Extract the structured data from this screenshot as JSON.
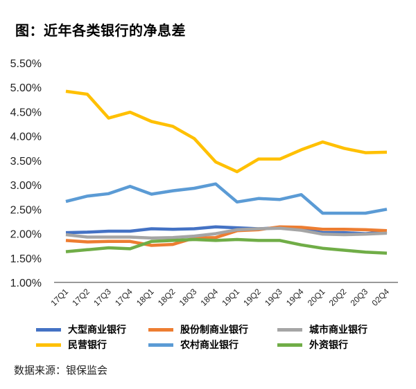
{
  "title": "图：近年各类银行的净息差",
  "source": "数据来源：银保监会",
  "chart_data": {
    "type": "line",
    "title": "图：近年各类银行的净息差",
    "xlabel": "",
    "ylabel": "",
    "ylim": [
      1.0,
      5.5
    ],
    "yticks": [
      "1.00%",
      "1.50%",
      "2.00%",
      "2.50%",
      "3.00%",
      "3.50%",
      "4.00%",
      "4.50%",
      "5.00%",
      "5.50%"
    ],
    "ytick_values": [
      1.0,
      1.5,
      2.0,
      2.5,
      3.0,
      3.5,
      4.0,
      4.5,
      5.0,
      5.5
    ],
    "grid": false,
    "legend_position": "bottom",
    "categories": [
      "17Q1",
      "17Q2",
      "17Q3",
      "17Q4",
      "18Q1",
      "18Q2",
      "18Q3",
      "18Q4",
      "19Q1",
      "19Q2",
      "19Q3",
      "19Q4",
      "20Q1",
      "20Q2",
      "20Q3",
      "02Q4"
    ],
    "series": [
      {
        "name": "大型商业银行",
        "color": "#4472C4",
        "values": [
          2.02,
          2.03,
          2.05,
          2.05,
          2.1,
          2.09,
          2.1,
          2.14,
          2.12,
          2.1,
          2.12,
          2.09,
          2.02,
          2.02,
          2.0,
          2.04
        ]
      },
      {
        "name": "股份制商业银行",
        "color": "#ED7D31",
        "values": [
          1.86,
          1.83,
          1.84,
          1.84,
          1.76,
          1.78,
          1.91,
          1.92,
          2.06,
          2.08,
          2.14,
          2.13,
          2.09,
          2.09,
          2.08,
          2.06
        ]
      },
      {
        "name": "城市商业银行",
        "color": "#A5A5A5",
        "values": [
          1.98,
          1.93,
          1.93,
          1.93,
          1.91,
          1.92,
          1.95,
          2.0,
          2.08,
          2.1,
          2.11,
          2.07,
          1.99,
          1.98,
          1.99,
          2.01
        ]
      },
      {
        "name": "民营银行",
        "color": "#FFC000",
        "values": [
          4.92,
          4.86,
          4.37,
          4.49,
          4.3,
          4.2,
          3.95,
          3.47,
          3.27,
          3.53,
          3.53,
          3.72,
          3.88,
          3.75,
          3.66,
          3.67
        ]
      },
      {
        "name": "农村商业银行",
        "color": "#5B9BD5",
        "values": [
          2.66,
          2.77,
          2.82,
          2.97,
          2.81,
          2.88,
          2.93,
          3.02,
          2.65,
          2.72,
          2.7,
          2.8,
          2.42,
          2.42,
          2.42,
          2.5
        ]
      },
      {
        "name": "外资银行",
        "color": "#70AD47",
        "values": [
          1.63,
          1.67,
          1.71,
          1.69,
          1.84,
          1.86,
          1.88,
          1.86,
          1.88,
          1.86,
          1.86,
          1.77,
          1.7,
          1.66,
          1.62,
          1.6
        ]
      }
    ]
  }
}
